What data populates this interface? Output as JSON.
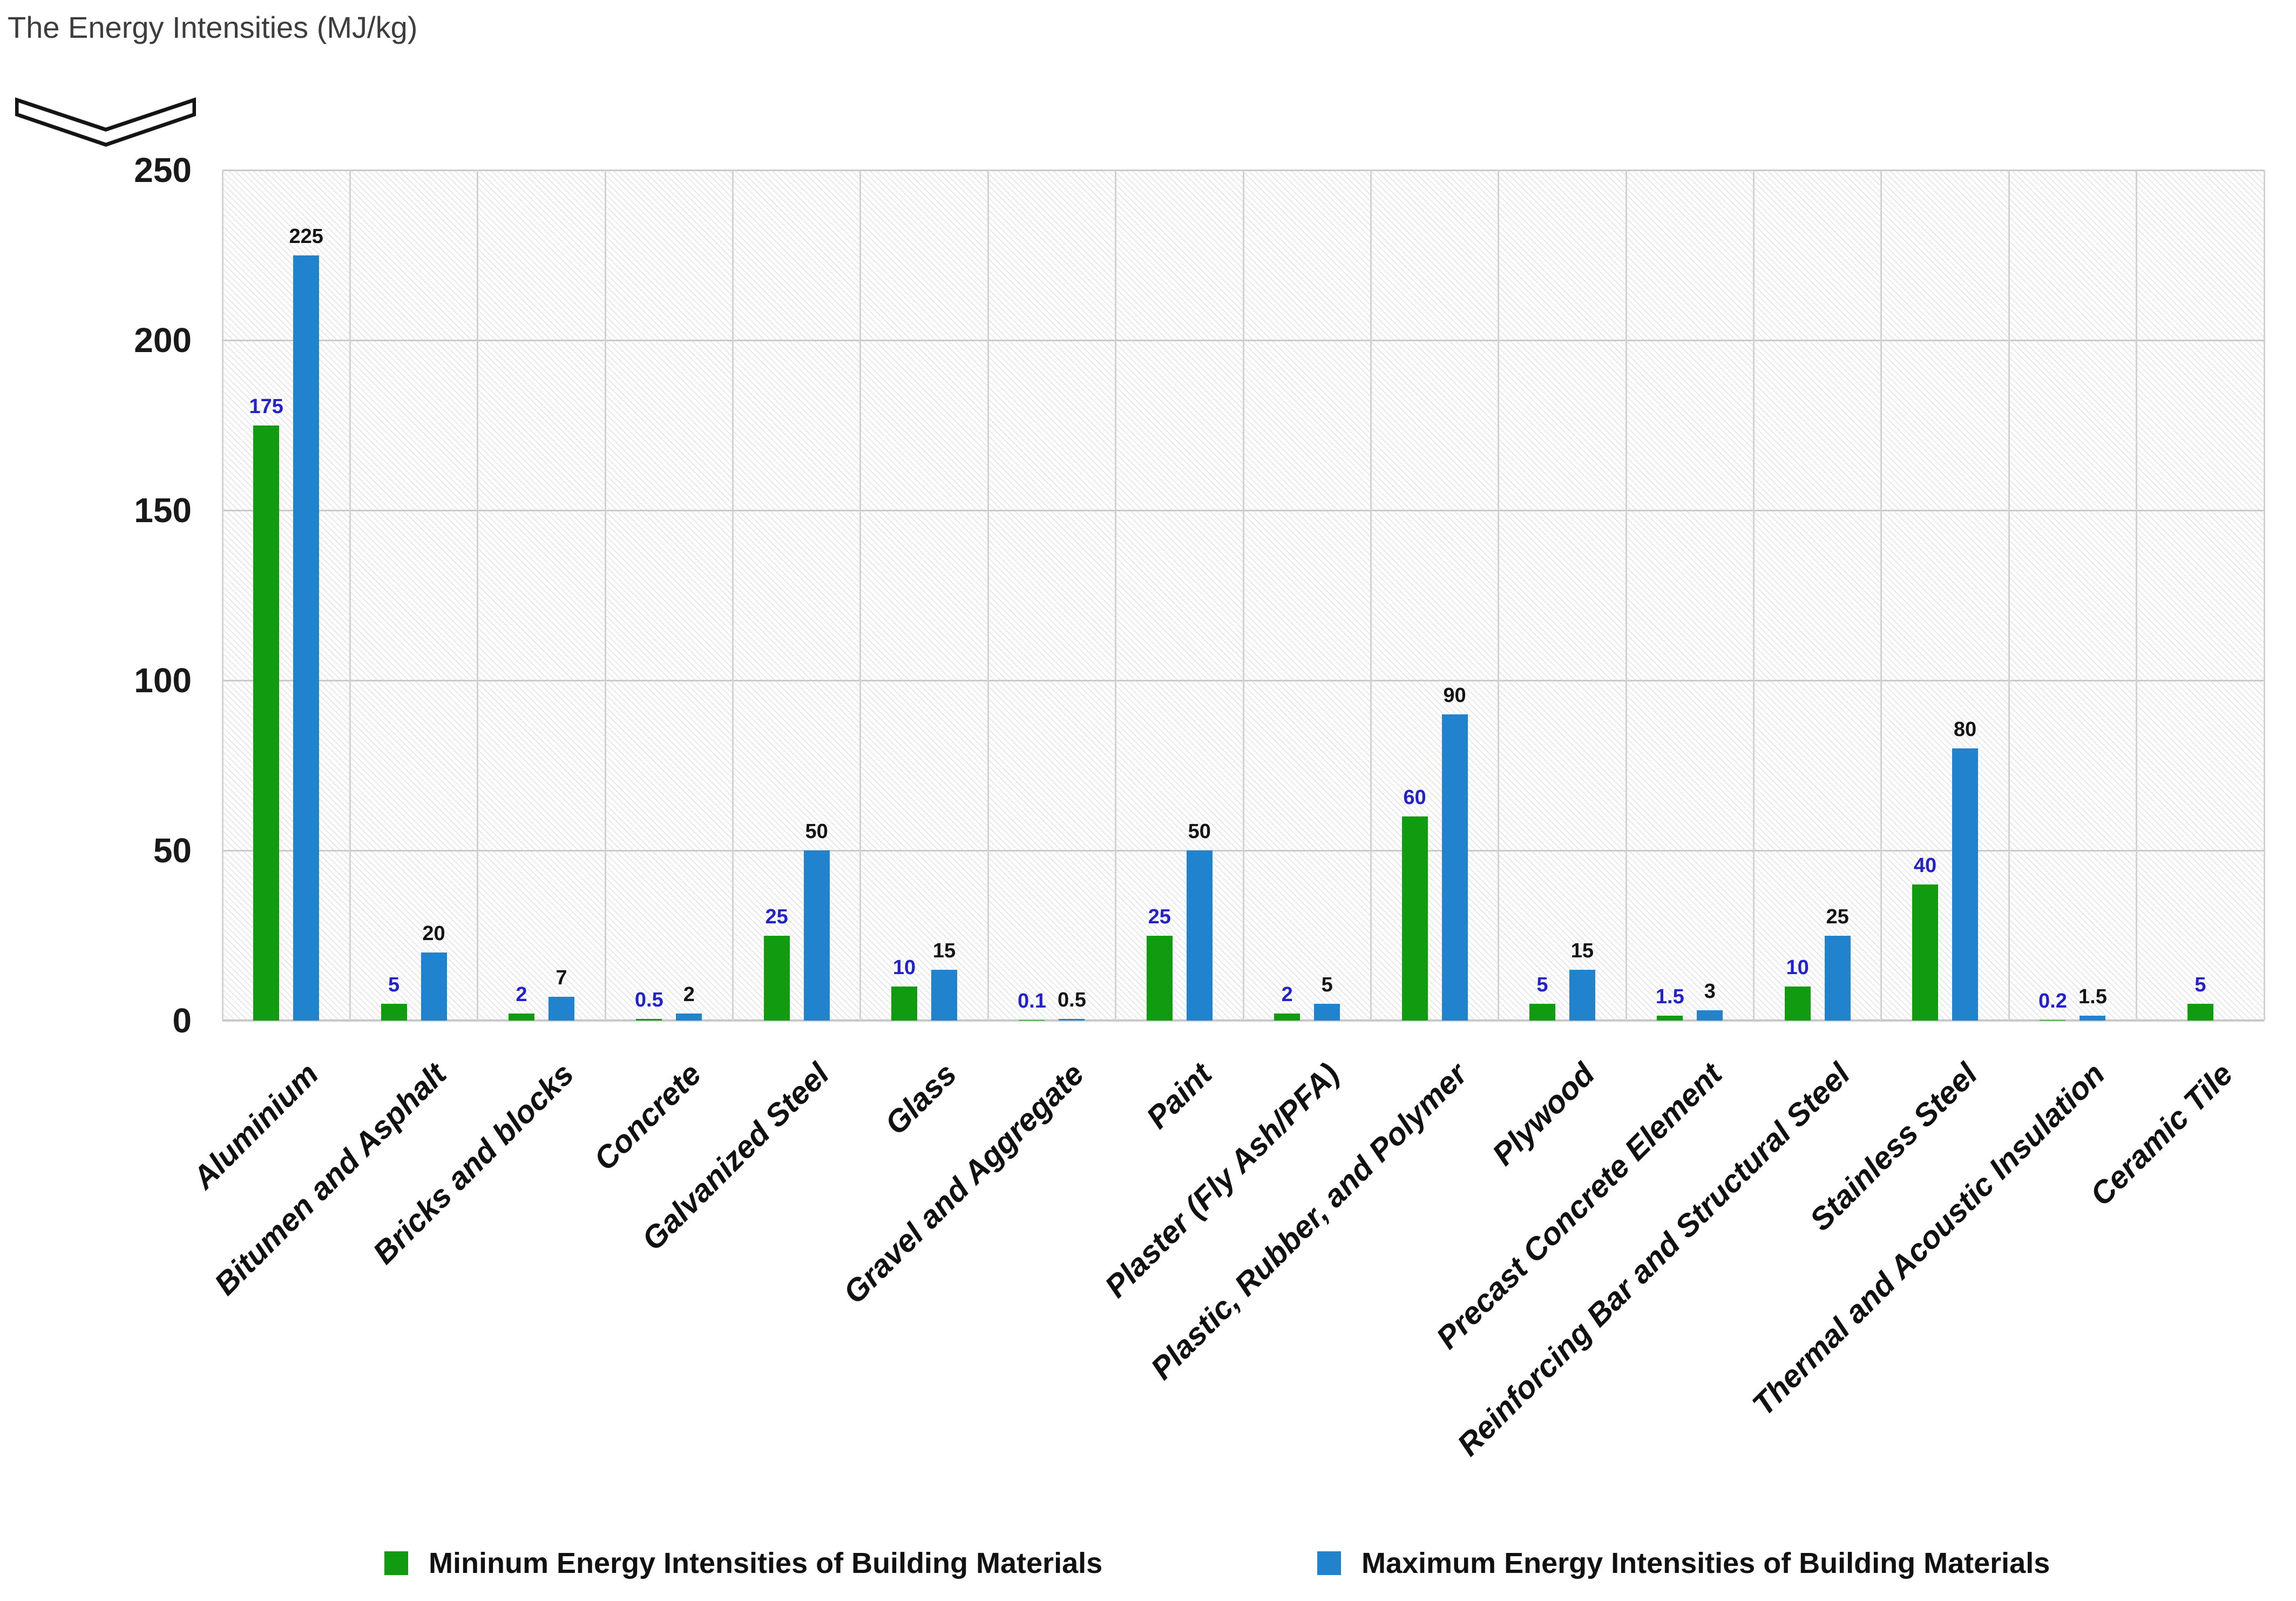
{
  "title": "The Energy Intensities (MJ/kg)",
  "icons": {
    "axis_break": "axis-break-chevron"
  },
  "colors": {
    "series_min": "#109b10",
    "series_max": "#2183cd",
    "min_value_label": "#2222c8",
    "max_value_label": "#141414",
    "gridline": "#cbcbcb",
    "title_text": "#3d3d3d",
    "axis_text": "#1a1a1a"
  },
  "chart_data": {
    "type": "bar",
    "title": "The Energy Intensities (MJ/kg)",
    "categories": [
      "Aluminium",
      "Bitumen and Asphalt",
      "Bricks and blocks",
      "Concrete",
      "Galvanized Steel",
      "Glass",
      "Gravel and Aggregate",
      "Paint",
      "Plaster (Fly Ash/PFA)",
      "Plastic, Rubber, and Polymer",
      "Plywood",
      "Precast Concrete Element",
      "Reinforcing Bar and Structural Steel",
      "Stainless Steel",
      "Thermal and Acoustic Insulation",
      "Ceramic Tile"
    ],
    "series": [
      {
        "name": "Mininum Energy Intensities of Building Materials",
        "color": "#109b10",
        "label_color": "#2222c8",
        "values": [
          175,
          5,
          2,
          0.5,
          25,
          10,
          0.1,
          25,
          2,
          60,
          5,
          1.5,
          10,
          40,
          0.2,
          5
        ]
      },
      {
        "name": "Maximum Energy Intensities of Building Materials",
        "color": "#2183cd",
        "label_color": "#141414",
        "values": [
          225,
          20,
          7,
          2,
          50,
          15,
          0.5,
          50,
          5,
          90,
          15,
          3,
          25,
          80,
          1.5,
          null
        ]
      }
    ],
    "xlabel": "",
    "ylabel": "",
    "ylim": [
      0,
      250
    ],
    "y_ticks": [
      0,
      50,
      100,
      150,
      200,
      250
    ],
    "grid": true,
    "plot_background": "diagonal-hatch",
    "axis_break_symbol": true,
    "data_labels": true,
    "legend_position": "bottom"
  }
}
